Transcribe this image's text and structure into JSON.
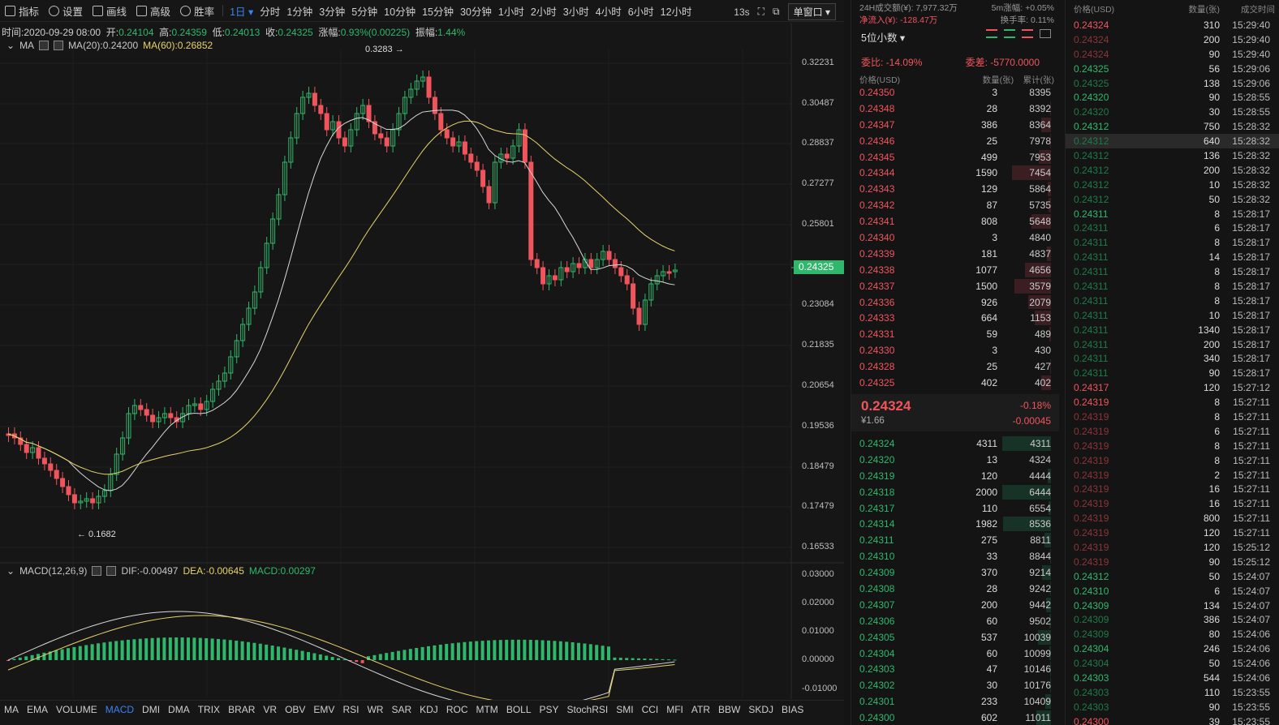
{
  "toolbar": {
    "indicators": "指标",
    "settings": "设置",
    "draw": "画线",
    "advanced": "高级",
    "winrate": "胜率",
    "active_period": "1日",
    "periods": [
      "分时",
      "1分钟",
      "3分钟",
      "5分钟",
      "10分钟",
      "15分钟",
      "30分钟",
      "1小时",
      "2小时",
      "3小时",
      "4小时",
      "6小时",
      "12小时"
    ],
    "countdown": "13s",
    "window_mode": "单窗口"
  },
  "info": {
    "time_label": "时间:",
    "time": "2020-09-29 08:00",
    "open_label": "开:",
    "open": "0.24104",
    "high_label": "高:",
    "high": "0.24359",
    "low_label": "低:",
    "low": "0.24013",
    "close_label": "收:",
    "close": "0.24325",
    "change_label": "涨幅:",
    "change": "0.93%(0.00225)",
    "amp_label": "振幅:",
    "amp": "1.44%"
  },
  "ma": {
    "label": "MA",
    "ma20": "MA(20):0.24200",
    "ma60": "MA(60):0.26852"
  },
  "macd": {
    "label": "MACD(12,26,9)",
    "dif": "DIF:-0.00497",
    "dea": "DEA:-0.00645",
    "macd": "MACD:0.00297"
  },
  "price_axis": [
    "0.32231",
    "0.30487",
    "0.28837",
    "0.27277",
    "0.25801",
    "0.23084",
    "0.21835",
    "0.20654",
    "0.19536",
    "0.18479",
    "0.17479",
    "0.16533"
  ],
  "current_price_tag": "0.24325",
  "macd_axis": [
    "0.03000",
    "0.02000",
    "0.01000",
    "0.00000",
    "-0.01000"
  ],
  "annotations": {
    "high": "0.3283 →",
    "low": "← 0.1682"
  },
  "indicator_tabs": [
    "MA",
    "EMA",
    "VOLUME",
    "MACD",
    "DMI",
    "DMA",
    "TRIX",
    "BRAR",
    "VR",
    "OBV",
    "EMV",
    "RSI",
    "WR",
    "SAR",
    "KDJ",
    "ROC",
    "MTM",
    "BOLL",
    "PSY",
    "StochRSI",
    "SMI",
    "CCI",
    "MFI",
    "ATR",
    "BBW",
    "SKDJ",
    "BIAS"
  ],
  "active_indicator": "MACD",
  "orderbook": {
    "vol24": "24H成交额(¥): 7,977.32万",
    "amp5m": "5m涨幅: +0.05%",
    "inflow": "净流入(¥): -128.47万",
    "turnover": "换手率: 0.11%",
    "precision": "5位小数 ▾",
    "ratio": "委比: -14.09%",
    "diff": "委差: -5770.0000",
    "col_price": "价格(USD)",
    "col_qty": "数量(张)",
    "col_cum": "累计(张)",
    "asks": [
      [
        "0.24350",
        "3",
        "8395"
      ],
      [
        "0.24348",
        "28",
        "8392"
      ],
      [
        "0.24347",
        "386",
        "8364"
      ],
      [
        "0.24346",
        "25",
        "7978"
      ],
      [
        "0.24345",
        "499",
        "7953"
      ],
      [
        "0.24344",
        "1590",
        "7454"
      ],
      [
        "0.24343",
        "129",
        "5864"
      ],
      [
        "0.24342",
        "87",
        "5735"
      ],
      [
        "0.24341",
        "808",
        "5648"
      ],
      [
        "0.24340",
        "3",
        "4840"
      ],
      [
        "0.24339",
        "181",
        "4837"
      ],
      [
        "0.24338",
        "1077",
        "4656"
      ],
      [
        "0.24337",
        "1500",
        "3579"
      ],
      [
        "0.24336",
        "926",
        "2079"
      ],
      [
        "0.24333",
        "664",
        "1153"
      ],
      [
        "0.24331",
        "59",
        "489"
      ],
      [
        "0.24330",
        "3",
        "430"
      ],
      [
        "0.24328",
        "25",
        "427"
      ],
      [
        "0.24325",
        "402",
        "402"
      ]
    ],
    "last_price": "0.24324",
    "last_cny": "¥1.66",
    "last_pct": "-0.18%",
    "last_chg": "-0.00045",
    "bids": [
      [
        "0.24324",
        "4311",
        "4311"
      ],
      [
        "0.24320",
        "13",
        "4324"
      ],
      [
        "0.24319",
        "120",
        "4444"
      ],
      [
        "0.24318",
        "2000",
        "6444"
      ],
      [
        "0.24317",
        "110",
        "6554"
      ],
      [
        "0.24314",
        "1982",
        "8536"
      ],
      [
        "0.24311",
        "275",
        "8811"
      ],
      [
        "0.24310",
        "33",
        "8844"
      ],
      [
        "0.24309",
        "370",
        "9214"
      ],
      [
        "0.24308",
        "28",
        "9242"
      ],
      [
        "0.24307",
        "200",
        "9442"
      ],
      [
        "0.24306",
        "60",
        "9502"
      ],
      [
        "0.24305",
        "537",
        "10039"
      ],
      [
        "0.24304",
        "60",
        "10099"
      ],
      [
        "0.24303",
        "47",
        "10146"
      ],
      [
        "0.24302",
        "30",
        "10176"
      ],
      [
        "0.24301",
        "233",
        "10409"
      ],
      [
        "0.24300",
        "602",
        "11011"
      ]
    ]
  },
  "trades": {
    "col_price": "价格(USD)",
    "col_qty": "数量(张)",
    "col_time": "成交时间",
    "rows": [
      [
        "0.24324",
        "310",
        "15:29:40",
        "dn"
      ],
      [
        "0.24324",
        "200",
        "15:29:40",
        "dnd"
      ],
      [
        "0.24324",
        "90",
        "15:29:40",
        "dnd"
      ],
      [
        "0.24325",
        "56",
        "15:29:06",
        "up"
      ],
      [
        "0.24325",
        "138",
        "15:29:06",
        "upd"
      ],
      [
        "0.24320",
        "90",
        "15:28:55",
        "up"
      ],
      [
        "0.24320",
        "30",
        "15:28:55",
        "upd"
      ],
      [
        "0.24312",
        "750",
        "15:28:32",
        "up"
      ],
      [
        "0.24312",
        "640",
        "15:28:32",
        "upd"
      ],
      [
        "0.24312",
        "136",
        "15:28:32",
        "upd"
      ],
      [
        "0.24312",
        "200",
        "15:28:32",
        "upd"
      ],
      [
        "0.24312",
        "10",
        "15:28:32",
        "upd"
      ],
      [
        "0.24312",
        "50",
        "15:28:32",
        "upd"
      ],
      [
        "0.24311",
        "8",
        "15:28:17",
        "up"
      ],
      [
        "0.24311",
        "6",
        "15:28:17",
        "upd"
      ],
      [
        "0.24311",
        "8",
        "15:28:17",
        "upd"
      ],
      [
        "0.24311",
        "14",
        "15:28:17",
        "upd"
      ],
      [
        "0.24311",
        "8",
        "15:28:17",
        "upd"
      ],
      [
        "0.24311",
        "8",
        "15:28:17",
        "upd"
      ],
      [
        "0.24311",
        "8",
        "15:28:17",
        "upd"
      ],
      [
        "0.24311",
        "10",
        "15:28:17",
        "upd"
      ],
      [
        "0.24311",
        "1340",
        "15:28:17",
        "upd"
      ],
      [
        "0.24311",
        "200",
        "15:28:17",
        "upd"
      ],
      [
        "0.24311",
        "340",
        "15:28:17",
        "upd"
      ],
      [
        "0.24311",
        "90",
        "15:28:17",
        "upd"
      ],
      [
        "0.24317",
        "120",
        "15:27:12",
        "dn"
      ],
      [
        "0.24319",
        "8",
        "15:27:11",
        "dn"
      ],
      [
        "0.24319",
        "8",
        "15:27:11",
        "dnd"
      ],
      [
        "0.24319",
        "6",
        "15:27:11",
        "dnd"
      ],
      [
        "0.24319",
        "8",
        "15:27:11",
        "dnd"
      ],
      [
        "0.24319",
        "8",
        "15:27:11",
        "dnd"
      ],
      [
        "0.24319",
        "2",
        "15:27:11",
        "dnd"
      ],
      [
        "0.24319",
        "16",
        "15:27:11",
        "dnd"
      ],
      [
        "0.24319",
        "16",
        "15:27:11",
        "dnd"
      ],
      [
        "0.24319",
        "800",
        "15:27:11",
        "dnd"
      ],
      [
        "0.24319",
        "120",
        "15:27:11",
        "dnd"
      ],
      [
        "0.24319",
        "120",
        "15:25:12",
        "dnd"
      ],
      [
        "0.24319",
        "90",
        "15:25:12",
        "dnd"
      ],
      [
        "0.24312",
        "50",
        "15:24:07",
        "up"
      ],
      [
        "0.24310",
        "6",
        "15:24:07",
        "up"
      ],
      [
        "0.24309",
        "134",
        "15:24:07",
        "up"
      ],
      [
        "0.24309",
        "386",
        "15:24:07",
        "upd"
      ],
      [
        "0.24309",
        "80",
        "15:24:06",
        "upd"
      ],
      [
        "0.24304",
        "246",
        "15:24:06",
        "up"
      ],
      [
        "0.24304",
        "50",
        "15:24:06",
        "upd"
      ],
      [
        "0.24303",
        "544",
        "15:24:06",
        "up"
      ],
      [
        "0.24303",
        "110",
        "15:23:55",
        "upd"
      ],
      [
        "0.24303",
        "90",
        "15:23:55",
        "upd"
      ],
      [
        "0.24300",
        "39",
        "15:23:55",
        "dn"
      ]
    ]
  },
  "colors": {
    "up": "#2fb86b",
    "down": "#f0555d",
    "ma20": "#d8d8d8",
    "ma60": "#e6d36a",
    "accent": "#3b82f6"
  }
}
